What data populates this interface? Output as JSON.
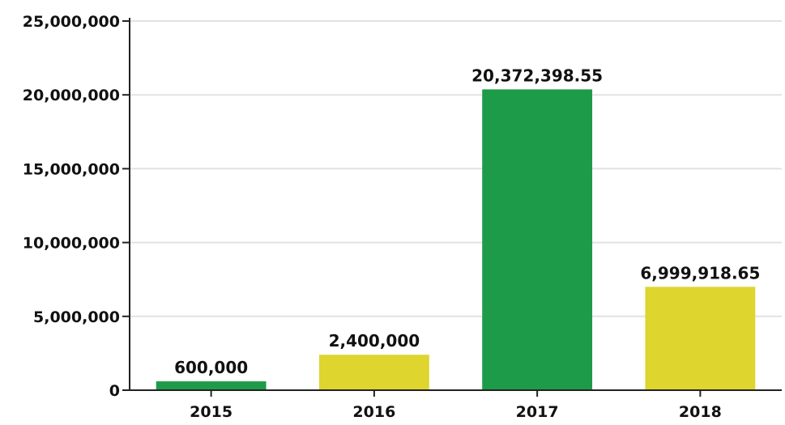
{
  "chart_data": {
    "type": "bar",
    "categories": [
      "2015",
      "2016",
      "2017",
      "2018"
    ],
    "values": [
      600000,
      2400000,
      20372398.55,
      6999918.65
    ],
    "value_labels": [
      "600,000",
      "2,400,000",
      "20,372,398.55",
      "6,999,918.65"
    ],
    "bar_colors": [
      "#1e9b48",
      "#ded52e",
      "#1e9b48",
      "#ded52e"
    ],
    "ylim": [
      0,
      25000000
    ],
    "yticks": [
      0,
      5000000,
      10000000,
      15000000,
      20000000,
      25000000
    ],
    "ytick_labels": [
      "0",
      "5,000,000",
      "10,000,000",
      "15,000,000",
      "20,000,000",
      "25,000,000"
    ],
    "grid": true,
    "legend": "none",
    "title": "",
    "xlabel": "",
    "ylabel": ""
  }
}
